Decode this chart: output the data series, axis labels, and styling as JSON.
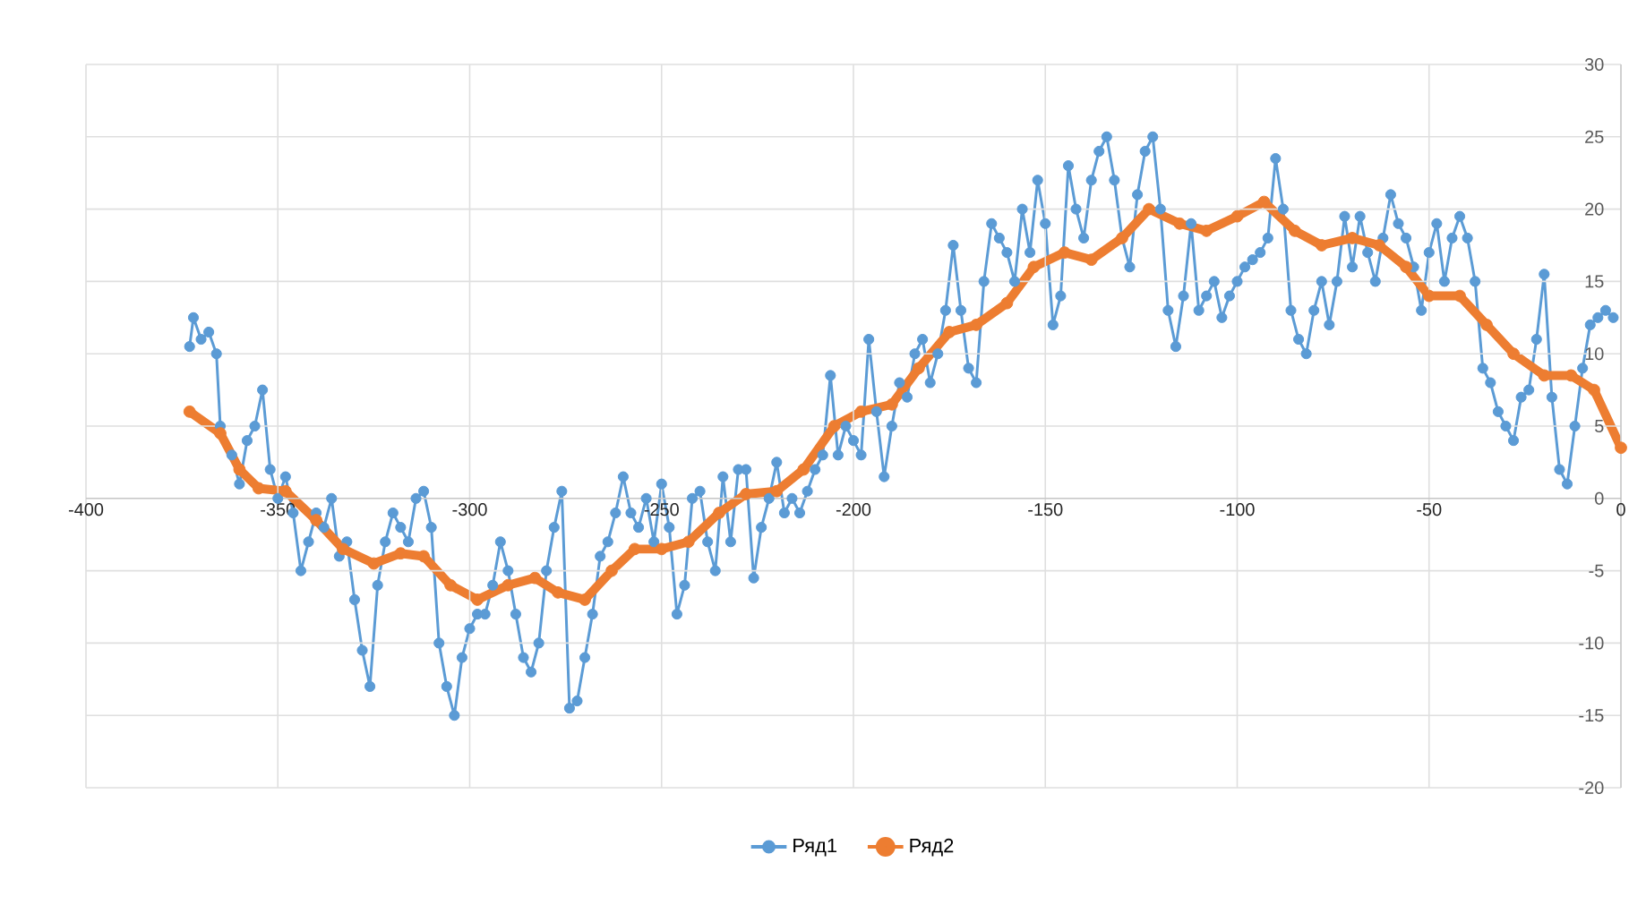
{
  "chart_data": {
    "type": "line",
    "xlim": [
      -400,
      0
    ],
    "xticks": [
      -400,
      -350,
      -300,
      -250,
      -200,
      -150,
      -100,
      -50,
      0
    ],
    "ylim": [
      -20,
      30
    ],
    "yticks": [
      -20,
      -15,
      -10,
      -5,
      0,
      5,
      10,
      15,
      20,
      25,
      30
    ],
    "grid": true,
    "legend": "bottom",
    "marker": "circle",
    "series": [
      {
        "name": "Ряд1",
        "color": "#5b9bd5",
        "x": [
          -373,
          -372,
          -370,
          -368,
          -366,
          -365,
          -362,
          -360,
          -358,
          -356,
          -354,
          -352,
          -350,
          -348,
          -346,
          -344,
          -342,
          -340,
          -338,
          -336,
          -334,
          -332,
          -330,
          -328,
          -326,
          -324,
          -322,
          -320,
          -318,
          -316,
          -314,
          -312,
          -310,
          -308,
          -306,
          -304,
          -302,
          -300,
          -298,
          -296,
          -294,
          -292,
          -290,
          -288,
          -286,
          -284,
          -282,
          -280,
          -278,
          -276,
          -274,
          -272,
          -270,
          -268,
          -266,
          -264,
          -262,
          -260,
          -258,
          -256,
          -254,
          -252,
          -250,
          -248,
          -246,
          -244,
          -242,
          -240,
          -238,
          -236,
          -234,
          -232,
          -230,
          -228,
          -226,
          -224,
          -222,
          -220,
          -218,
          -216,
          -214,
          -212,
          -210,
          -208,
          -206,
          -204,
          -202,
          -200,
          -198,
          -196,
          -194,
          -192,
          -190,
          -188,
          -186,
          -184,
          -182,
          -180,
          -178,
          -176,
          -174,
          -172,
          -170,
          -168,
          -166,
          -164,
          -162,
          -160,
          -158,
          -156,
          -154,
          -152,
          -150,
          -148,
          -146,
          -144,
          -142,
          -140,
          -138,
          -136,
          -134,
          -132,
          -130,
          -128,
          -126,
          -124,
          -122,
          -120,
          -118,
          -116,
          -114,
          -112,
          -110,
          -108,
          -106,
          -104,
          -102,
          -100,
          -98,
          -96,
          -94,
          -92,
          -90,
          -88,
          -86,
          -84,
          -82,
          -80,
          -78,
          -76,
          -74,
          -72,
          -70,
          -68,
          -66,
          -64,
          -62,
          -60,
          -58,
          -56,
          -54,
          -52,
          -50,
          -48,
          -46,
          -44,
          -42,
          -40,
          -38,
          -36,
          -34,
          -32,
          -30,
          -28,
          -26,
          -24,
          -22,
          -20,
          -18,
          -16,
          -14,
          -12,
          -10,
          -8,
          -6,
          -4,
          -2
        ],
        "values": [
          10.5,
          12.5,
          11,
          11.5,
          10,
          5,
          3,
          1,
          4,
          5,
          7.5,
          2,
          0,
          1.5,
          -1,
          -5,
          -3,
          -1,
          -2,
          0,
          -4,
          -3,
          -7,
          -10.5,
          -13,
          -6,
          -3,
          -1,
          -2,
          -3,
          0,
          0.5,
          -2,
          -10,
          -13,
          -15,
          -11,
          -9,
          -8,
          -8,
          -6,
          -3,
          -5,
          -8,
          -11,
          -12,
          -10,
          -5,
          -2,
          0.5,
          -14.5,
          -14,
          -11,
          -8,
          -4,
          -3,
          -1,
          1.5,
          -1,
          -2,
          0,
          -3,
          1,
          -2,
          -8,
          -6,
          0,
          0.5,
          -3,
          -5,
          1.5,
          -3,
          2,
          2,
          -5.5,
          -2,
          0,
          2.5,
          -1,
          0,
          -1,
          0.5,
          2,
          3,
          8.5,
          3,
          5,
          4,
          3,
          11,
          6,
          1.5,
          5,
          8,
          7,
          10,
          11,
          8,
          10,
          13,
          17.5,
          13,
          9,
          8,
          15,
          19,
          18,
          17,
          15,
          20,
          17,
          22,
          19,
          12,
          14,
          23,
          20,
          18,
          22,
          24,
          25,
          22,
          18,
          16,
          21,
          24,
          25,
          20,
          13,
          10.5,
          14,
          19,
          13,
          14,
          15,
          12.5,
          14,
          15,
          16,
          16.5,
          17,
          18,
          23.5,
          20,
          13,
          11,
          10,
          13,
          15,
          12,
          15,
          19.5,
          16,
          19.5,
          17,
          15,
          18,
          21,
          19,
          18,
          16,
          13,
          17,
          19,
          15,
          18,
          19.5,
          18,
          15,
          9,
          8,
          6,
          5,
          4,
          7,
          7.5,
          11,
          15.5,
          7,
          2,
          1,
          5,
          9,
          12,
          12.5,
          13,
          12.5
        ]
      },
      {
        "name": "Ряд2",
        "color": "#ed7d31",
        "x": [
          -373,
          -365,
          -360,
          -355,
          -348,
          -340,
          -333,
          -325,
          -318,
          -312,
          -305,
          -298,
          -290,
          -283,
          -277,
          -270,
          -263,
          -257,
          -250,
          -243,
          -235,
          -228,
          -220,
          -213,
          -205,
          -198,
          -190,
          -183,
          -175,
          -168,
          -160,
          -153,
          -145,
          -138,
          -130,
          -123,
          -115,
          -108,
          -100,
          -93,
          -85,
          -78,
          -70,
          -63,
          -56,
          -50,
          -42,
          -35,
          -28,
          -20,
          -13,
          -7,
          0
        ],
        "values": [
          6,
          4.5,
          2,
          0.7,
          0.5,
          -1.5,
          -3.5,
          -4.5,
          -3.8,
          -4,
          -6,
          -7,
          -6,
          -5.5,
          -6.5,
          -7,
          -5,
          -3.5,
          -3.5,
          -3,
          -1,
          0.3,
          0.5,
          2,
          5,
          6,
          6.5,
          9,
          11.5,
          12,
          13.5,
          16,
          17,
          16.5,
          18,
          20,
          19,
          18.5,
          19.5,
          20.5,
          18.5,
          17.5,
          18,
          17.5,
          16,
          14,
          14,
          12,
          10,
          8.5,
          8.5,
          7.5,
          3.5
        ]
      }
    ]
  }
}
